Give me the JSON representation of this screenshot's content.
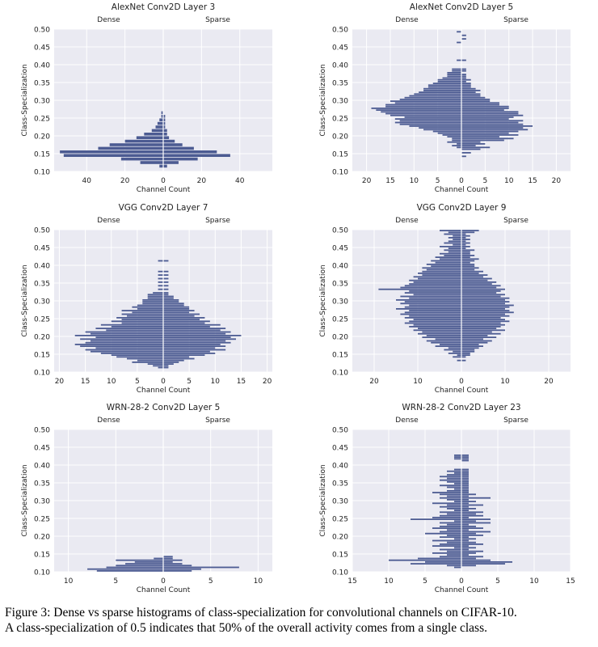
{
  "colors": {
    "plot_bg": "#eaeaf2",
    "bar": "#4c5b92",
    "grid": "#ffffff"
  },
  "caption": {
    "line1": "Figure 3: Dense vs sparse histograms of class-specialization for convolutional channels on CIFAR-10.",
    "line2": "A class-specialization of 0.5 indicates that 50% of the overall activity comes from a single class."
  },
  "chart_data": [
    {
      "type": "bar",
      "orientation": "horizontal-back-to-back",
      "title": "AlexNet Conv2D Layer 3",
      "left_label": "Dense",
      "right_label": "Sparse",
      "xlabel": "Channel Count",
      "ylabel": "Class-Specialization",
      "xlim": [
        -57,
        57
      ],
      "ylim": [
        0.1,
        0.5
      ],
      "xticks": [
        -40,
        -20,
        0,
        20,
        40
      ],
      "xtick_labels": [
        "40",
        "20",
        "0",
        "20",
        "40"
      ],
      "yticks": [
        0.1,
        0.15,
        0.2,
        0.25,
        0.3,
        0.35,
        0.4,
        0.45,
        0.5
      ],
      "ytick_labels": [
        "0.10",
        "0.15",
        "0.20",
        "0.25",
        "0.30",
        "0.35",
        "0.40",
        "0.45",
        "0.50"
      ],
      "grid": true,
      "bin_width": 0.01,
      "bins": [
        0.11,
        0.12,
        0.13,
        0.14,
        0.15,
        0.16,
        0.17,
        0.18,
        0.19,
        0.2,
        0.21,
        0.22,
        0.23,
        0.24,
        0.25,
        0.26,
        0.27,
        0.28
      ],
      "series": [
        {
          "name": "Dense",
          "values": [
            2,
            12,
            22,
            52,
            54,
            34,
            28,
            20,
            14,
            10,
            6,
            4,
            3,
            2,
            1,
            1,
            0,
            0
          ]
        },
        {
          "name": "Sparse",
          "values": [
            2,
            8,
            18,
            35,
            28,
            16,
            10,
            6,
            3,
            2,
            2,
            1,
            1,
            1,
            1,
            0,
            0,
            0
          ]
        }
      ]
    },
    {
      "type": "bar",
      "orientation": "horizontal-back-to-back",
      "title": "AlexNet Conv2D Layer 5",
      "left_label": "Dense",
      "right_label": "Sparse",
      "xlabel": "Channel Count",
      "ylabel": "Class-Specialization",
      "xlim": [
        -23,
        23
      ],
      "ylim": [
        0.1,
        0.5
      ],
      "xticks": [
        -20,
        -15,
        -10,
        -5,
        0,
        5,
        10,
        15,
        20
      ],
      "xtick_labels": [
        "20",
        "15",
        "10",
        "5",
        "0",
        "5",
        "10",
        "15",
        "20"
      ],
      "yticks": [
        0.1,
        0.15,
        0.2,
        0.25,
        0.3,
        0.35,
        0.4,
        0.45,
        0.5
      ],
      "ytick_labels": [
        "0.10",
        "0.15",
        "0.20",
        "0.25",
        "0.30",
        "0.35",
        "0.40",
        "0.45",
        "0.50"
      ],
      "grid": true,
      "bin_width": 0.005,
      "bins": [
        0.14,
        0.15,
        0.16,
        0.165,
        0.17,
        0.175,
        0.18,
        0.185,
        0.19,
        0.195,
        0.2,
        0.205,
        0.21,
        0.215,
        0.22,
        0.225,
        0.23,
        0.235,
        0.24,
        0.245,
        0.25,
        0.255,
        0.26,
        0.265,
        0.27,
        0.275,
        0.28,
        0.285,
        0.29,
        0.295,
        0.3,
        0.305,
        0.31,
        0.315,
        0.32,
        0.325,
        0.33,
        0.335,
        0.34,
        0.345,
        0.35,
        0.355,
        0.36,
        0.365,
        0.37,
        0.375,
        0.38,
        0.385,
        0.41,
        0.46,
        0.47,
        0.48,
        0.49
      ],
      "series": [
        {
          "name": "Dense",
          "values": [
            0,
            0,
            0,
            1,
            2,
            1,
            3,
            2,
            2,
            3,
            4,
            5,
            6,
            8,
            9,
            11,
            13,
            14,
            13,
            14,
            12,
            15,
            16,
            17,
            18,
            19,
            16,
            16,
            14,
            15,
            13,
            12,
            11,
            10,
            9,
            8,
            8,
            7,
            7,
            6,
            5,
            5,
            4,
            3,
            3,
            3,
            2,
            2,
            1,
            1,
            0,
            0,
            1
          ]
        },
        {
          "name": "Sparse",
          "values": [
            1,
            2,
            4,
            6,
            3,
            5,
            4,
            9,
            11,
            8,
            12,
            10,
            12,
            14,
            13,
            15,
            13,
            12,
            13,
            10,
            11,
            13,
            12,
            12,
            9,
            10,
            10,
            8,
            8,
            6,
            6,
            5,
            4,
            4,
            3,
            4,
            3,
            2,
            2,
            2,
            1,
            2,
            1,
            1,
            1,
            0,
            1,
            1,
            1,
            0,
            1,
            1,
            0
          ]
        }
      ]
    },
    {
      "type": "bar",
      "orientation": "horizontal-back-to-back",
      "title": "VGG Conv2D Layer 7",
      "left_label": "Dense",
      "right_label": "Sparse",
      "xlabel": "Channel Count",
      "ylabel": "Class-Specialization",
      "xlim": [
        -21,
        21
      ],
      "ylim": [
        0.1,
        0.5
      ],
      "xticks": [
        -20,
        -15,
        -10,
        -5,
        0,
        5,
        10,
        15,
        20
      ],
      "xtick_labels": [
        "20",
        "15",
        "10",
        "5",
        "0",
        "5",
        "10",
        "15",
        "20"
      ],
      "yticks": [
        0.1,
        0.15,
        0.2,
        0.25,
        0.3,
        0.35,
        0.4,
        0.45,
        0.5
      ],
      "ytick_labels": [
        "0.10",
        "0.15",
        "0.20",
        "0.25",
        "0.30",
        "0.35",
        "0.40",
        "0.45",
        "0.50"
      ],
      "grid": true,
      "bin_width": 0.005,
      "bins": [
        0.11,
        0.115,
        0.12,
        0.125,
        0.13,
        0.135,
        0.14,
        0.145,
        0.15,
        0.155,
        0.16,
        0.165,
        0.17,
        0.175,
        0.18,
        0.185,
        0.19,
        0.195,
        0.2,
        0.205,
        0.21,
        0.215,
        0.22,
        0.225,
        0.23,
        0.235,
        0.24,
        0.245,
        0.25,
        0.255,
        0.26,
        0.265,
        0.27,
        0.275,
        0.28,
        0.285,
        0.29,
        0.295,
        0.3,
        0.305,
        0.31,
        0.315,
        0.32,
        0.33,
        0.34,
        0.35,
        0.36,
        0.37,
        0.38,
        0.41
      ],
      "series": [
        {
          "name": "Dense",
          "values": [
            1,
            2,
            3,
            6,
            5,
            7,
            9,
            10,
            12,
            14,
            15,
            13,
            16,
            17,
            15,
            14,
            16,
            13,
            17,
            14,
            15,
            11,
            13,
            10,
            12,
            8,
            10,
            8,
            9,
            7,
            8,
            6,
            8,
            5,
            6,
            5,
            4,
            4,
            4,
            3,
            3,
            3,
            2,
            1,
            1,
            1,
            1,
            1,
            1,
            1
          ]
        },
        {
          "name": "Sparse",
          "values": [
            1,
            1,
            2,
            3,
            4,
            6,
            5,
            8,
            10,
            9,
            12,
            10,
            12,
            11,
            13,
            12,
            14,
            13,
            15,
            12,
            13,
            11,
            12,
            9,
            11,
            8,
            9,
            7,
            8,
            6,
            7,
            5,
            6,
            5,
            5,
            4,
            4,
            3,
            3,
            2,
            2,
            1,
            1,
            1,
            1,
            1,
            1,
            1,
            1,
            1
          ]
        }
      ]
    },
    {
      "type": "bar",
      "orientation": "horizontal-back-to-back",
      "title": "VGG Conv2D Layer 9",
      "left_label": "Dense",
      "right_label": "Sparse",
      "xlabel": "Channel Count",
      "ylabel": "Class-Specialization",
      "xlim": [
        -25,
        25
      ],
      "ylim": [
        0.1,
        0.5
      ],
      "xticks": [
        -20,
        -10,
        0,
        10,
        20
      ],
      "xtick_labels": [
        "20",
        "10",
        "0",
        "10",
        "20"
      ],
      "yticks": [
        0.1,
        0.15,
        0.2,
        0.25,
        0.3,
        0.35,
        0.4,
        0.45,
        0.5
      ],
      "ytick_labels": [
        "0.10",
        "0.15",
        "0.20",
        "0.25",
        "0.30",
        "0.35",
        "0.40",
        "0.45",
        "0.50"
      ],
      "grid": true,
      "bin_width": 0.005,
      "bins": [
        0.13,
        0.135,
        0.14,
        0.145,
        0.15,
        0.155,
        0.16,
        0.165,
        0.17,
        0.175,
        0.18,
        0.185,
        0.19,
        0.195,
        0.2,
        0.205,
        0.21,
        0.215,
        0.22,
        0.225,
        0.23,
        0.235,
        0.24,
        0.245,
        0.25,
        0.255,
        0.26,
        0.265,
        0.27,
        0.275,
        0.28,
        0.285,
        0.29,
        0.295,
        0.3,
        0.305,
        0.31,
        0.315,
        0.32,
        0.325,
        0.33,
        0.335,
        0.34,
        0.345,
        0.35,
        0.355,
        0.36,
        0.365,
        0.37,
        0.375,
        0.38,
        0.385,
        0.39,
        0.395,
        0.4,
        0.405,
        0.41,
        0.415,
        0.42,
        0.425,
        0.43,
        0.435,
        0.44,
        0.445,
        0.45,
        0.455,
        0.46,
        0.465,
        0.47,
        0.475,
        0.48,
        0.485,
        0.49,
        0.495
      ],
      "series": [
        {
          "name": "Dense",
          "values": [
            1,
            0,
            2,
            1,
            3,
            2,
            4,
            3,
            6,
            5,
            7,
            8,
            6,
            9,
            8,
            10,
            9,
            11,
            10,
            12,
            11,
            13,
            12,
            11,
            13,
            12,
            14,
            13,
            12,
            15,
            13,
            12,
            14,
            13,
            15,
            12,
            14,
            11,
            13,
            12,
            19,
            14,
            13,
            12,
            11,
            12,
            10,
            11,
            9,
            10,
            9,
            8,
            9,
            7,
            8,
            6,
            7,
            5,
            6,
            4,
            5,
            3,
            4,
            3,
            5,
            2,
            4,
            3,
            2,
            3,
            2,
            4,
            3,
            5
          ]
        },
        {
          "name": "Sparse",
          "values": [
            1,
            0,
            1,
            2,
            2,
            3,
            3,
            4,
            5,
            4,
            6,
            7,
            5,
            8,
            6,
            9,
            7,
            10,
            8,
            9,
            10,
            9,
            11,
            10,
            9,
            11,
            10,
            12,
            11,
            10,
            11,
            12,
            10,
            11,
            10,
            11,
            9,
            10,
            8,
            9,
            10,
            8,
            9,
            7,
            8,
            6,
            7,
            5,
            6,
            4,
            5,
            3,
            4,
            3,
            3,
            2,
            3,
            4,
            2,
            3,
            2,
            2,
            3,
            1,
            2,
            1,
            2,
            1,
            2,
            1,
            2,
            1,
            3,
            4
          ]
        }
      ]
    },
    {
      "type": "bar",
      "orientation": "horizontal-back-to-back",
      "title": "WRN-28-2 Conv2D Layer 5",
      "left_label": "Dense",
      "right_label": "Sparse",
      "xlabel": "Channel Count",
      "ylabel": "Class-Specialization",
      "xlim": [
        -11.5,
        11.5
      ],
      "ylim": [
        0.1,
        0.5
      ],
      "xticks": [
        -10,
        -5,
        0,
        5,
        10
      ],
      "xtick_labels": [
        "10",
        "5",
        "0",
        "5",
        "10"
      ],
      "yticks": [
        0.1,
        0.15,
        0.2,
        0.25,
        0.3,
        0.35,
        0.4,
        0.45,
        0.5
      ],
      "ytick_labels": [
        "0.10",
        "0.15",
        "0.20",
        "0.25",
        "0.30",
        "0.35",
        "0.40",
        "0.45",
        "0.50"
      ],
      "grid": true,
      "bin_width": 0.005,
      "bins": [
        0.1,
        0.105,
        0.11,
        0.115,
        0.12,
        0.125,
        0.13,
        0.135,
        0.14
      ],
      "series": [
        {
          "name": "Dense",
          "values": [
            7,
            8,
            6,
            5,
            4,
            3,
            5,
            1,
            0
          ]
        },
        {
          "name": "Sparse",
          "values": [
            3,
            4,
            8,
            3,
            2,
            1,
            2,
            1,
            1
          ]
        }
      ]
    },
    {
      "type": "bar",
      "orientation": "horizontal-back-to-back",
      "title": "WRN-28-2 Conv2D Layer 23",
      "left_label": "Dense",
      "right_label": "Sparse",
      "xlabel": "Channel Count",
      "ylabel": "Class-Specialization",
      "xlim": [
        -15,
        15
      ],
      "ylim": [
        0.1,
        0.5
      ],
      "xticks": [
        -15,
        -10,
        -5,
        0,
        5,
        10,
        15
      ],
      "xtick_labels": [
        "15",
        "10",
        "5",
        "0",
        "5",
        "10",
        "15"
      ],
      "yticks": [
        0.1,
        0.15,
        0.2,
        0.25,
        0.3,
        0.35,
        0.4,
        0.45,
        0.5
      ],
      "ytick_labels": [
        "0.10",
        "0.15",
        "0.20",
        "0.25",
        "0.30",
        "0.35",
        "0.40",
        "0.45",
        "0.50"
      ],
      "grid": true,
      "bin_width": 0.005,
      "bins": [
        0.11,
        0.115,
        0.12,
        0.125,
        0.13,
        0.135,
        0.14,
        0.145,
        0.15,
        0.155,
        0.16,
        0.165,
        0.17,
        0.175,
        0.18,
        0.185,
        0.19,
        0.195,
        0.2,
        0.205,
        0.21,
        0.215,
        0.22,
        0.225,
        0.23,
        0.235,
        0.24,
        0.245,
        0.25,
        0.255,
        0.26,
        0.265,
        0.27,
        0.275,
        0.28,
        0.285,
        0.29,
        0.295,
        0.3,
        0.305,
        0.31,
        0.315,
        0.32,
        0.325,
        0.33,
        0.335,
        0.34,
        0.345,
        0.35,
        0.355,
        0.36,
        0.365,
        0.37,
        0.375,
        0.38,
        0.385,
        0.41,
        0.415,
        0.42,
        0.425
      ],
      "series": [
        {
          "name": "Dense",
          "values": [
            1,
            2,
            7,
            5,
            10,
            6,
            3,
            2,
            4,
            2,
            3,
            1,
            4,
            3,
            2,
            4,
            1,
            3,
            2,
            5,
            3,
            2,
            4,
            3,
            2,
            3,
            1,
            7,
            4,
            3,
            2,
            3,
            1,
            2,
            3,
            2,
            4,
            1,
            2,
            3,
            2,
            3,
            4,
            2,
            1,
            2,
            3,
            1,
            2,
            3,
            2,
            3,
            2,
            1,
            2,
            1,
            0,
            1,
            1,
            1
          ]
        },
        {
          "name": "Sparse",
          "values": [
            0,
            2,
            6,
            7,
            4,
            2,
            3,
            1,
            2,
            3,
            1,
            2,
            1,
            3,
            2,
            1,
            2,
            1,
            3,
            2,
            4,
            1,
            3,
            2,
            1,
            4,
            2,
            4,
            1,
            3,
            2,
            3,
            1,
            2,
            1,
            3,
            1,
            2,
            1,
            4,
            1,
            2,
            1,
            1,
            1,
            1,
            1,
            1,
            1,
            1,
            1,
            1,
            1,
            1,
            1,
            1,
            1,
            1,
            1,
            1
          ]
        }
      ]
    }
  ]
}
